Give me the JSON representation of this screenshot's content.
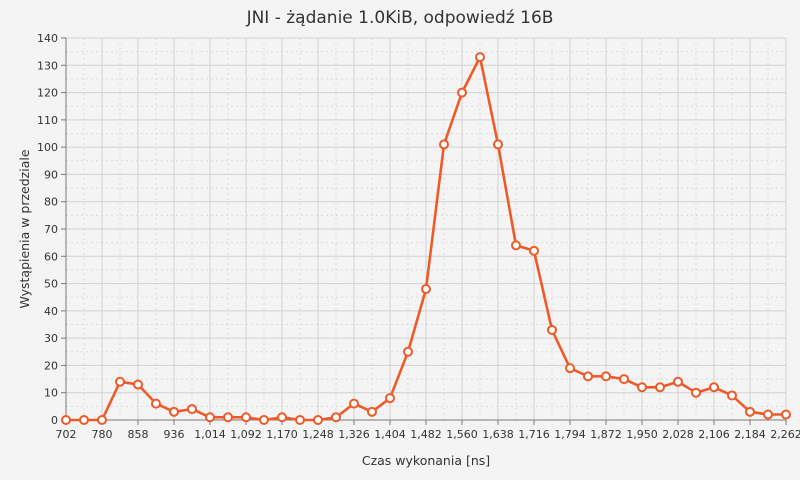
{
  "chart_data": {
    "type": "line",
    "title": "JNI - żądanie 1.0KiB, odpowiedź 16B",
    "xlabel": "Czas wykonania [ns]",
    "ylabel": "Wystąpienia w przedziale",
    "xlim": [
      702,
      2262
    ],
    "ylim": [
      0,
      140
    ],
    "x_ticks": [
      "702",
      "780",
      "858",
      "936",
      "1,014",
      "1,092",
      "1,170",
      "1,248",
      "1,326",
      "1,404",
      "1,482",
      "1,560",
      "1,638",
      "1,716",
      "1,794",
      "1,872",
      "1,950",
      "2,028",
      "2,106",
      "2,184",
      "2,262"
    ],
    "x_tick_values": [
      702,
      780,
      858,
      936,
      1014,
      1092,
      1170,
      1248,
      1326,
      1404,
      1482,
      1560,
      1638,
      1716,
      1794,
      1872,
      1950,
      2028,
      2106,
      2184,
      2262
    ],
    "y_ticks": [
      0,
      10,
      20,
      30,
      40,
      50,
      60,
      70,
      80,
      90,
      100,
      110,
      120,
      130,
      140
    ],
    "grid": true,
    "legend": "none",
    "series_color": "#f05a28",
    "series": [
      {
        "x": [
          702,
          741,
          780,
          819,
          858,
          897,
          936,
          975,
          1014,
          1053,
          1092,
          1131,
          1170,
          1209,
          1248,
          1287,
          1326,
          1365,
          1404,
          1443,
          1482,
          1521,
          1560,
          1599,
          1638,
          1677,
          1716,
          1755,
          1794,
          1833,
          1872,
          1911,
          1950,
          1989,
          2028,
          2067,
          2106,
          2145,
          2184,
          2223,
          2262
        ],
        "values": [
          0,
          0,
          0,
          14,
          13,
          6,
          3,
          4,
          1,
          1,
          1,
          0,
          1,
          0,
          0,
          1,
          6,
          3,
          8,
          25,
          48,
          101,
          120,
          133,
          101,
          64,
          62,
          33,
          19,
          16,
          16,
          15,
          12,
          12,
          14,
          10,
          12,
          9,
          3,
          2,
          2
        ]
      }
    ]
  }
}
